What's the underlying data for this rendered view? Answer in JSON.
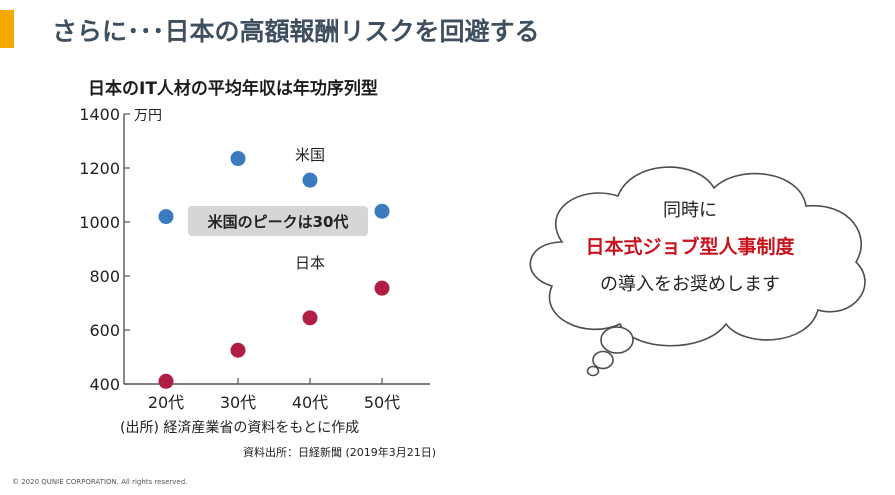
{
  "slide": {
    "title": "さらに･･･日本の高額報酬リスクを回避する",
    "accent_color": "#f5a800",
    "copyright": "© 2020  QUNIE CORPORATION. All rights reserved."
  },
  "chart_data": {
    "type": "scatter",
    "title": "日本のIT人材の平均年収は年功序列型",
    "ylabel": "万円",
    "ylim": [
      400,
      1400
    ],
    "yticks": [
      400,
      600,
      800,
      1000,
      1200,
      1400
    ],
    "categories": [
      "20代",
      "30代",
      "40代",
      "50代"
    ],
    "series": [
      {
        "name": "米国",
        "color": "#3a7bbf",
        "values": [
          1020,
          1235,
          1155,
          1040
        ]
      },
      {
        "name": "日本",
        "color": "#b01e46",
        "values": [
          410,
          525,
          645,
          755
        ]
      }
    ],
    "annotation": "米国のピークは30代",
    "grid": false,
    "source_note": "(出所) 経済産業省の資料をもとに作成",
    "credit": "資料出所：日経新聞 (2019年3月21日)"
  },
  "callout": {
    "line1": "同時に",
    "line2": "日本式ジョブ型人事制度",
    "line3": "の導入をお奨めします"
  }
}
